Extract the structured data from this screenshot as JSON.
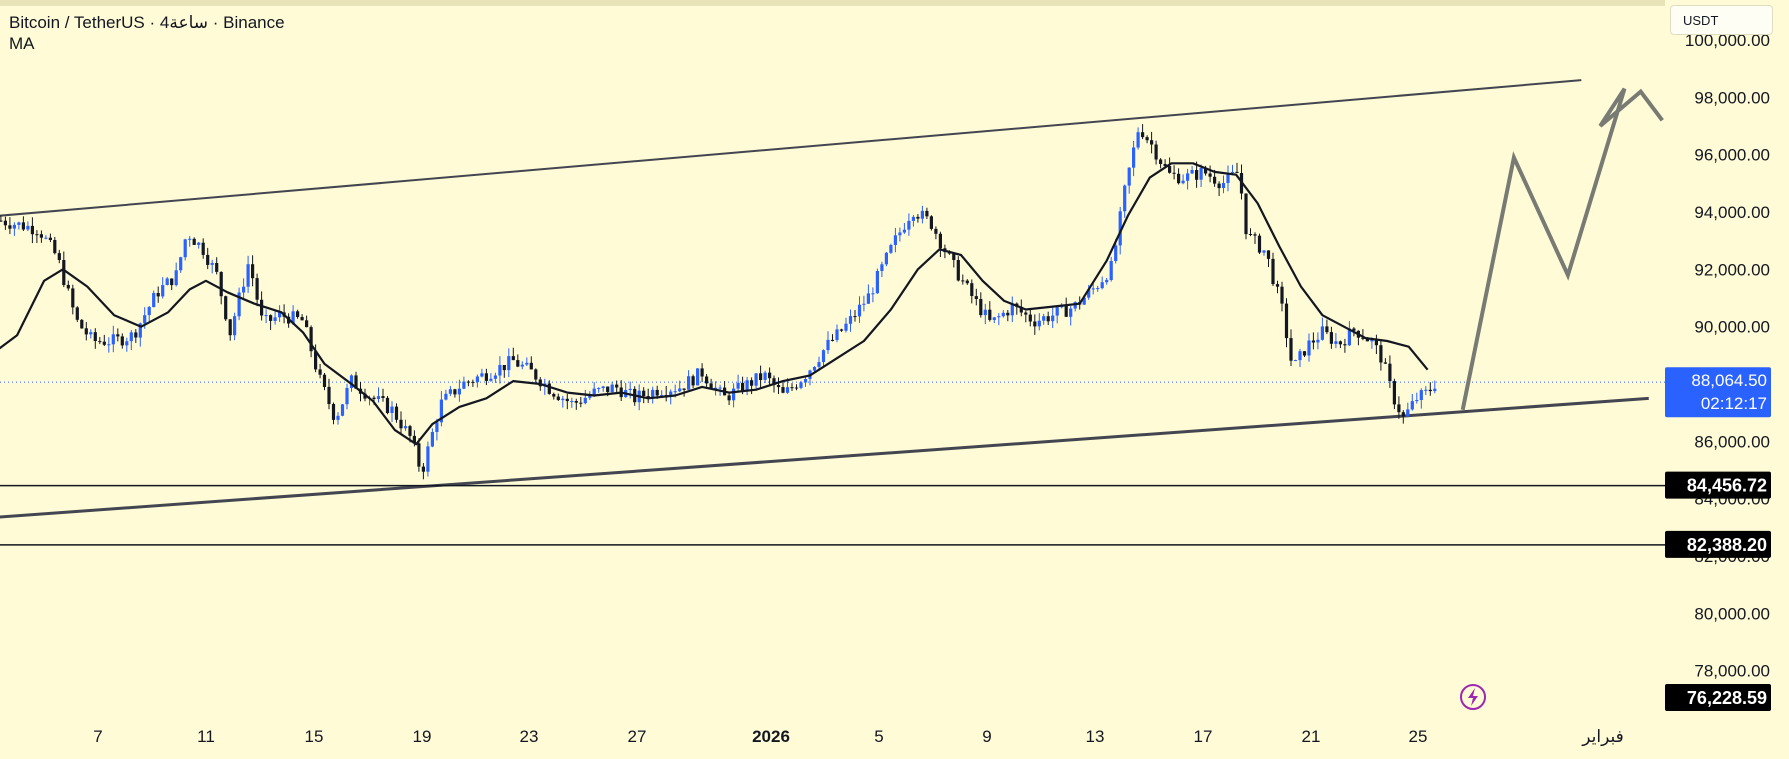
{
  "legend": {
    "title": "Bitcoin / TetherUS · 4ساعة · Binance",
    "indicator": "MA"
  },
  "toolbar": {
    "currency": "USDT"
  },
  "colors": {
    "background": "#fffbd6",
    "up": "#2962ff",
    "down": "#131722",
    "ma": "#131722",
    "channel": "#434651",
    "projection": "#787b74",
    "price_tag": "#2962ff",
    "level_tag": "#000000",
    "alert_icon": "#9c27b0"
  },
  "chart_data": {
    "type": "candlestick",
    "symbol": "BTCUSDT",
    "timeframe": "4h",
    "exchange": "Binance",
    "x_ticks": [
      "7",
      "11",
      "15",
      "19",
      "23",
      "27",
      "2026",
      "5",
      "9",
      "13",
      "17",
      "21",
      "25",
      "فبراير"
    ],
    "y_ticks": [
      "100,000.00",
      "98,000.00",
      "96,000.00",
      "94,000.00",
      "92,000.00",
      "90,000.00",
      "86,000.00",
      "84,000.00",
      "82,000.00",
      "80,000.00",
      "78,000.00"
    ],
    "ylim": [
      75000,
      101000
    ],
    "grid": false,
    "close_path": [
      [
        3.4,
        93700
      ],
      [
        4.8,
        93400
      ],
      [
        5.5,
        92400
      ],
      [
        6.2,
        90200
      ],
      [
        6.8,
        89500
      ],
      [
        7.6,
        89500
      ],
      [
        8.3,
        89700
      ],
      [
        9.2,
        91200
      ],
      [
        9.9,
        91800
      ],
      [
        10.3,
        93300
      ],
      [
        10.9,
        92700
      ],
      [
        11.4,
        91800
      ],
      [
        11.9,
        89800
      ],
      [
        12.6,
        92300
      ],
      [
        13.1,
        90100
      ],
      [
        13.8,
        90400
      ],
      [
        14.6,
        90200
      ],
      [
        15.2,
        88200
      ],
      [
        15.8,
        86800
      ],
      [
        16.4,
        88100
      ],
      [
        17.2,
        87500
      ],
      [
        17.9,
        87100
      ],
      [
        18.6,
        86100
      ],
      [
        19.0,
        84900
      ],
      [
        19.7,
        87300
      ],
      [
        20.5,
        88000
      ],
      [
        21.5,
        88400
      ],
      [
        22.4,
        88800
      ],
      [
        23.1,
        88400
      ],
      [
        23.8,
        87800
      ],
      [
        24.6,
        87300
      ],
      [
        25.4,
        87700
      ],
      [
        26.2,
        87900
      ],
      [
        26.9,
        87500
      ],
      [
        27.7,
        87800
      ],
      [
        28.6,
        87900
      ],
      [
        29.4,
        88400
      ],
      [
        30.2,
        87500
      ],
      [
        30.9,
        87900
      ],
      [
        31.7,
        88300
      ],
      [
        32.4,
        87600
      ],
      [
        33.2,
        88300
      ],
      [
        34.0,
        89300
      ],
      [
        34.8,
        90100
      ],
      [
        35.6,
        91100
      ],
      [
        36.5,
        92900
      ],
      [
        37.2,
        94100
      ],
      [
        37.9,
        93600
      ],
      [
        38.6,
        92300
      ],
      [
        39.3,
        91200
      ],
      [
        40.1,
        90100
      ],
      [
        40.9,
        90700
      ],
      [
        41.7,
        90200
      ],
      [
        42.4,
        90400
      ],
      [
        43.2,
        90700
      ],
      [
        44.0,
        91400
      ],
      [
        44.6,
        92100
      ],
      [
        45.1,
        94900
      ],
      [
        45.6,
        97000
      ],
      [
        46.1,
        96300
      ],
      [
        46.7,
        95300
      ],
      [
        47.3,
        95200
      ],
      [
        48.0,
        95400
      ],
      [
        48.7,
        95000
      ],
      [
        49.3,
        95400
      ],
      [
        49.6,
        93200
      ],
      [
        50.3,
        92600
      ],
      [
        50.9,
        90600
      ],
      [
        51.3,
        88500
      ],
      [
        51.8,
        89300
      ],
      [
        52.4,
        89800
      ],
      [
        53.0,
        89400
      ],
      [
        53.6,
        89900
      ],
      [
        54.2,
        89500
      ],
      [
        54.6,
        88900
      ],
      [
        55.0,
        87600
      ],
      [
        55.4,
        86800
      ],
      [
        55.9,
        87500
      ],
      [
        56.3,
        87700
      ],
      [
        56.6,
        88060
      ]
    ],
    "ma_path": [
      [
        3.0,
        89000
      ],
      [
        4.0,
        89700
      ],
      [
        5.0,
        91600
      ],
      [
        5.7,
        92000
      ],
      [
        6.6,
        91400
      ],
      [
        7.6,
        90400
      ],
      [
        8.6,
        90000
      ],
      [
        9.6,
        90500
      ],
      [
        10.4,
        91300
      ],
      [
        11.0,
        91600
      ],
      [
        11.8,
        91200
      ],
      [
        12.8,
        90800
      ],
      [
        13.8,
        90500
      ],
      [
        14.6,
        89800
      ],
      [
        15.4,
        88700
      ],
      [
        16.4,
        88000
      ],
      [
        17.2,
        87400
      ],
      [
        18.0,
        86400
      ],
      [
        18.8,
        85900
      ],
      [
        19.4,
        86600
      ],
      [
        20.4,
        87200
      ],
      [
        21.4,
        87500
      ],
      [
        22.4,
        88100
      ],
      [
        23.4,
        88000
      ],
      [
        24.4,
        87700
      ],
      [
        25.4,
        87600
      ],
      [
        26.4,
        87700
      ],
      [
        27.4,
        87500
      ],
      [
        28.4,
        87600
      ],
      [
        29.4,
        87900
      ],
      [
        30.4,
        87700
      ],
      [
        31.4,
        87800
      ],
      [
        32.4,
        88100
      ],
      [
        33.4,
        88300
      ],
      [
        34.4,
        88900
      ],
      [
        35.4,
        89500
      ],
      [
        36.4,
        90600
      ],
      [
        37.4,
        92000
      ],
      [
        38.2,
        92700
      ],
      [
        39.0,
        92500
      ],
      [
        39.8,
        91600
      ],
      [
        40.6,
        90900
      ],
      [
        41.4,
        90600
      ],
      [
        42.4,
        90700
      ],
      [
        43.4,
        90800
      ],
      [
        44.4,
        92300
      ],
      [
        45.2,
        93900
      ],
      [
        46.0,
        95200
      ],
      [
        46.8,
        95700
      ],
      [
        47.6,
        95700
      ],
      [
        48.4,
        95400
      ],
      [
        49.2,
        95300
      ],
      [
        50.0,
        94300
      ],
      [
        50.8,
        92800
      ],
      [
        51.6,
        91400
      ],
      [
        52.4,
        90400
      ],
      [
        53.2,
        90000
      ],
      [
        54.0,
        89600
      ],
      [
        54.8,
        89500
      ],
      [
        55.6,
        89300
      ],
      [
        56.3,
        88500
      ]
    ],
    "channel_upper": [
      [
        0,
        93600
      ],
      [
        62.0,
        98600
      ]
    ],
    "channel_lower": [
      [
        -0.5,
        83100
      ],
      [
        64.5,
        87500
      ]
    ],
    "projection": [
      [
        57.6,
        87100
      ],
      [
        59.5,
        95900
      ],
      [
        61.5,
        91800
      ],
      [
        63.6,
        98300
      ],
      [
        62.7,
        97000
      ],
      [
        64.2,
        98200
      ],
      [
        65.0,
        97200
      ]
    ],
    "levels": [
      {
        "value": 84456.72,
        "label": "84,456.72"
      },
      {
        "value": 82388.2,
        "label": "82,388.20"
      }
    ],
    "last_price": {
      "value": 88064.5,
      "label": "88,064.50",
      "countdown": "02:12:17"
    },
    "low_marker": {
      "value": 76228.59,
      "label": "76,228.59"
    },
    "price_scale_label": "USDT"
  }
}
